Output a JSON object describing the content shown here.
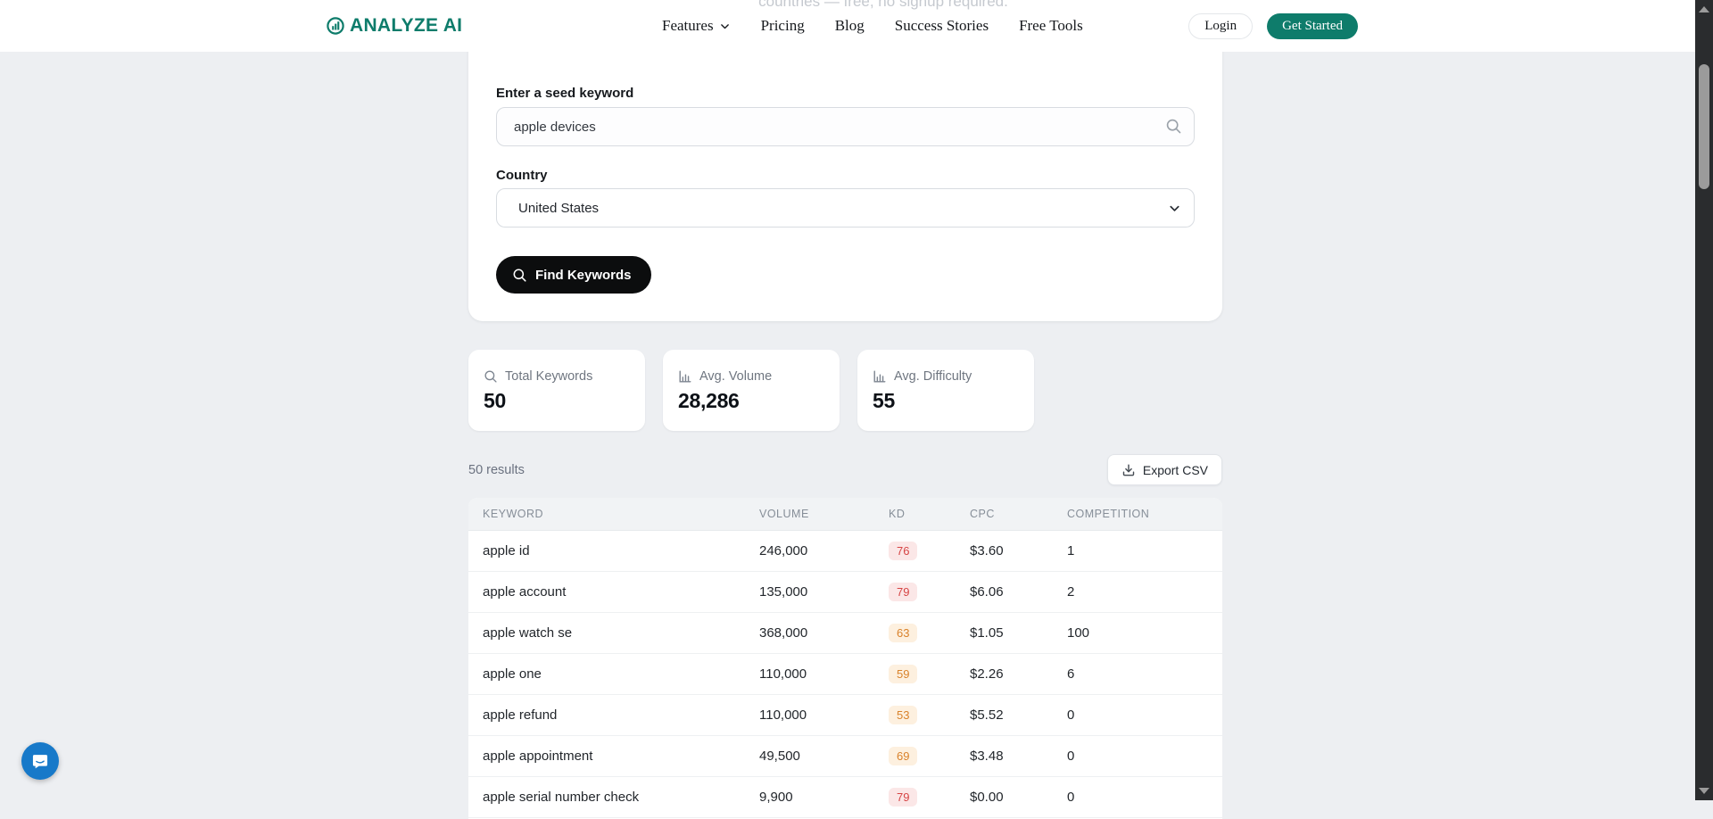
{
  "page": {
    "background": "#edeff2",
    "hero_peek_text": "countries — free, no signup required."
  },
  "header": {
    "logo_text": "ANALYZE AI",
    "logo_icon": "chart-circle-icon",
    "brand_color": "#0e7c6b",
    "nav_items": [
      {
        "label": "Features",
        "has_dropdown": true
      },
      {
        "label": "Pricing",
        "has_dropdown": false
      },
      {
        "label": "Blog",
        "has_dropdown": false
      },
      {
        "label": "Success Stories",
        "has_dropdown": false
      },
      {
        "label": "Free Tools",
        "has_dropdown": false
      }
    ],
    "login_label": "Login",
    "get_started_label": "Get Started"
  },
  "search_form": {
    "keyword_label": "Enter a seed keyword",
    "keyword_value": "apple devices",
    "keyword_icon": "search-icon",
    "country_label": "Country",
    "country_value": "United States",
    "submit_label": "Find Keywords",
    "submit_icon": "search-icon"
  },
  "stats": [
    {
      "icon": "search-icon",
      "label": "Total Keywords",
      "value": "50"
    },
    {
      "icon": "bar-chart-icon",
      "label": "Avg. Volume",
      "value": "28,286"
    },
    {
      "icon": "bar-chart-icon",
      "label": "Avg. Difficulty",
      "value": "55"
    }
  ],
  "results": {
    "count_text": "50 results",
    "export_label": "Export CSV",
    "export_icon": "download-icon"
  },
  "table": {
    "columns": [
      "KEYWORD",
      "VOLUME",
      "KD",
      "CPC",
      "COMPETITION"
    ],
    "kd_colors": {
      "high_bg": "#fbe7e7",
      "high_text": "#d64545",
      "medium_bg": "#fdf0df",
      "medium_text": "#d9822b"
    },
    "rows": [
      {
        "keyword": "apple id",
        "volume": "246,000",
        "kd": "76",
        "kd_level": "high",
        "cpc": "$3.60",
        "competition": "1"
      },
      {
        "keyword": "apple account",
        "volume": "135,000",
        "kd": "79",
        "kd_level": "high",
        "cpc": "$6.06",
        "competition": "2"
      },
      {
        "keyword": "apple watch se",
        "volume": "368,000",
        "kd": "63",
        "kd_level": "medium",
        "cpc": "$1.05",
        "competition": "100"
      },
      {
        "keyword": "apple one",
        "volume": "110,000",
        "kd": "59",
        "kd_level": "medium",
        "cpc": "$2.26",
        "competition": "6"
      },
      {
        "keyword": "apple refund",
        "volume": "110,000",
        "kd": "53",
        "kd_level": "medium",
        "cpc": "$5.52",
        "competition": "0"
      },
      {
        "keyword": "apple appointment",
        "volume": "49,500",
        "kd": "69",
        "kd_level": "medium",
        "cpc": "$3.48",
        "competition": "0"
      },
      {
        "keyword": "apple serial number check",
        "volume": "9,900",
        "kd": "79",
        "kd_level": "high",
        "cpc": "$0.00",
        "competition": "0"
      }
    ]
  },
  "chat_widget": {
    "icon": "chat-bubble-icon",
    "color": "#1779c9"
  },
  "scrollbar": {
    "theme": "dark"
  }
}
